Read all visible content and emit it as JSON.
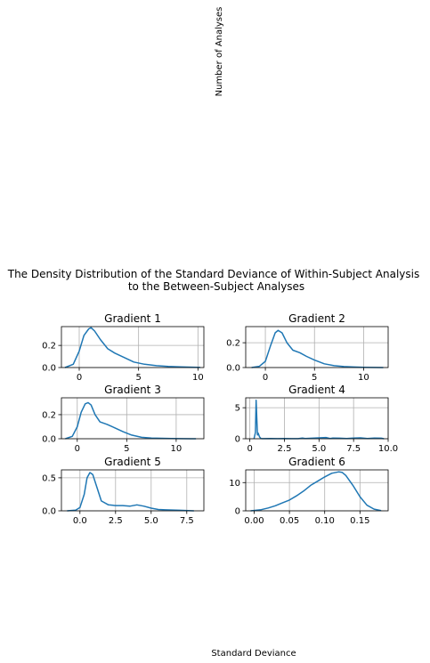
{
  "figure": {
    "title_line1": "The Density Distribution of the Standard Deviance of Within-Subject Analysis",
    "title_line2": "to the Between-Subject Analyses",
    "ylabel": "Number of Analyses",
    "xlabel": "Standard Deviance",
    "line_color": "#1f77b4",
    "grid_color": "#b0b0b0"
  },
  "chart_data": [
    {
      "type": "line",
      "title": "Gradient 1",
      "xlim": [
        -1.5,
        10.5
      ],
      "ylim": [
        0,
        0.37
      ],
      "xticks": [
        0,
        5,
        10
      ],
      "xtick_labels": [
        "0",
        "5",
        "10"
      ],
      "yticks": [
        0,
        0.2
      ],
      "ytick_labels": [
        "0.0",
        "0.2"
      ],
      "grid": true,
      "x": [
        -1.2,
        -0.5,
        0,
        0.4,
        0.8,
        1.0,
        1.3,
        1.8,
        2.4,
        3.0,
        3.8,
        4.6,
        5.5,
        6.5,
        7.5,
        8.5,
        9.5,
        10.2
      ],
      "y": [
        0.0,
        0.03,
        0.15,
        0.29,
        0.35,
        0.36,
        0.33,
        0.25,
        0.17,
        0.13,
        0.09,
        0.05,
        0.03,
        0.017,
        0.01,
        0.006,
        0.003,
        0.001
      ]
    },
    {
      "type": "line",
      "title": "Gradient 2",
      "xlim": [
        -2.0,
        12.5
      ],
      "ylim": [
        0,
        0.33
      ],
      "xticks": [
        0,
        5,
        10
      ],
      "xtick_labels": [
        "0",
        "5",
        "10"
      ],
      "yticks": [
        0,
        0.2
      ],
      "ytick_labels": [
        "0.0",
        "0.2"
      ],
      "grid": true,
      "x": [
        -1.4,
        -0.6,
        0,
        0.5,
        1.0,
        1.3,
        1.7,
        2.2,
        2.8,
        3.5,
        4.2,
        5.0,
        6.0,
        7.0,
        8.0,
        9.0,
        10.0,
        11.0,
        12.0
      ],
      "y": [
        0.0,
        0.01,
        0.05,
        0.17,
        0.28,
        0.3,
        0.28,
        0.2,
        0.14,
        0.12,
        0.09,
        0.06,
        0.03,
        0.015,
        0.008,
        0.004,
        0.002,
        0.001,
        0.0
      ]
    },
    {
      "type": "line",
      "title": "Gradient 3",
      "xlim": [
        -1.6,
        12.8
      ],
      "ylim": [
        0,
        0.34
      ],
      "xticks": [
        0,
        5,
        10
      ],
      "xtick_labels": [
        "0",
        "5",
        "10"
      ],
      "yticks": [
        0,
        0.2
      ],
      "ytick_labels": [
        "0.0",
        "0.2"
      ],
      "grid": true,
      "x": [
        -1.2,
        -0.5,
        0,
        0.4,
        0.8,
        1.1,
        1.4,
        1.8,
        2.3,
        3.0,
        3.8,
        4.6,
        5.5,
        6.5,
        7.5,
        8.5,
        9.5,
        10.5,
        11.5,
        12.0
      ],
      "y": [
        0.0,
        0.02,
        0.1,
        0.22,
        0.29,
        0.3,
        0.28,
        0.2,
        0.14,
        0.12,
        0.09,
        0.06,
        0.03,
        0.012,
        0.006,
        0.004,
        0.002,
        0.001,
        0.0,
        0.0
      ]
    },
    {
      "type": "line",
      "title": "Gradient 4",
      "xlim": [
        -0.3,
        10.0
      ],
      "ylim": [
        0,
        6.6
      ],
      "xticks": [
        0,
        2.5,
        5.0,
        7.5,
        10.0
      ],
      "xtick_labels": [
        "0",
        "2.5",
        "5.0",
        "7.5",
        "10.0"
      ],
      "yticks": [
        0,
        5
      ],
      "ytick_labels": [
        "0",
        "5"
      ],
      "grid": true,
      "x": [
        0.3,
        0.4,
        0.45,
        0.5,
        0.55,
        0.6,
        0.7,
        0.8,
        0.9,
        1.0,
        1.5,
        2.0,
        2.5,
        3.0,
        3.5,
        3.8,
        4.0,
        4.5,
        5.0,
        5.5,
        5.8,
        6.0,
        6.5,
        7.0,
        7.5,
        8.0,
        8.5,
        9.0,
        9.5,
        9.7
      ],
      "y": [
        0.0,
        1.0,
        6.2,
        3.5,
        0.6,
        0.9,
        0.3,
        0.05,
        0.02,
        0.01,
        0.05,
        0.01,
        0.03,
        0.01,
        0.02,
        0.12,
        0.05,
        0.08,
        0.15,
        0.2,
        0.05,
        0.12,
        0.08,
        0.05,
        0.1,
        0.15,
        0.05,
        0.12,
        0.08,
        0.0
      ]
    },
    {
      "type": "line",
      "title": "Gradient 5",
      "xlim": [
        -1.3,
        8.7
      ],
      "ylim": [
        0,
        0.62
      ],
      "xticks": [
        0,
        2.5,
        5.0,
        7.5
      ],
      "xtick_labels": [
        "0.0",
        "2.5",
        "5.0",
        "7.5"
      ],
      "yticks": [
        0,
        0.5
      ],
      "ytick_labels": [
        "0.0",
        "0.5"
      ],
      "grid": true,
      "x": [
        -0.9,
        -0.3,
        0,
        0.3,
        0.5,
        0.7,
        0.9,
        1.2,
        1.5,
        2.0,
        2.5,
        3.0,
        3.5,
        4.0,
        4.5,
        5.0,
        5.5,
        6.0,
        7.0,
        8.0
      ],
      "y": [
        0.0,
        0.01,
        0.05,
        0.25,
        0.5,
        0.58,
        0.55,
        0.35,
        0.15,
        0.09,
        0.08,
        0.08,
        0.07,
        0.09,
        0.07,
        0.04,
        0.02,
        0.015,
        0.008,
        0.0
      ]
    },
    {
      "type": "line",
      "title": "Gradient 6",
      "xlim": [
        -0.012,
        0.19
      ],
      "ylim": [
        0,
        14.5
      ],
      "xticks": [
        0,
        0.05,
        0.1,
        0.15
      ],
      "xtick_labels": [
        "0.00",
        "0.05",
        "0.10",
        "0.15"
      ],
      "yticks": [
        0,
        10
      ],
      "ytick_labels": [
        "0",
        "10"
      ],
      "grid": true,
      "x": [
        -0.005,
        0.01,
        0.02,
        0.03,
        0.04,
        0.05,
        0.06,
        0.07,
        0.08,
        0.09,
        0.1,
        0.11,
        0.12,
        0.125,
        0.13,
        0.14,
        0.15,
        0.16,
        0.17,
        0.18
      ],
      "y": [
        0.0,
        0.4,
        1.0,
        1.8,
        2.8,
        3.8,
        5.3,
        7.0,
        9.0,
        10.5,
        12.0,
        13.3,
        13.8,
        13.6,
        12.5,
        9.0,
        5.0,
        2.0,
        0.6,
        0.1
      ]
    }
  ]
}
